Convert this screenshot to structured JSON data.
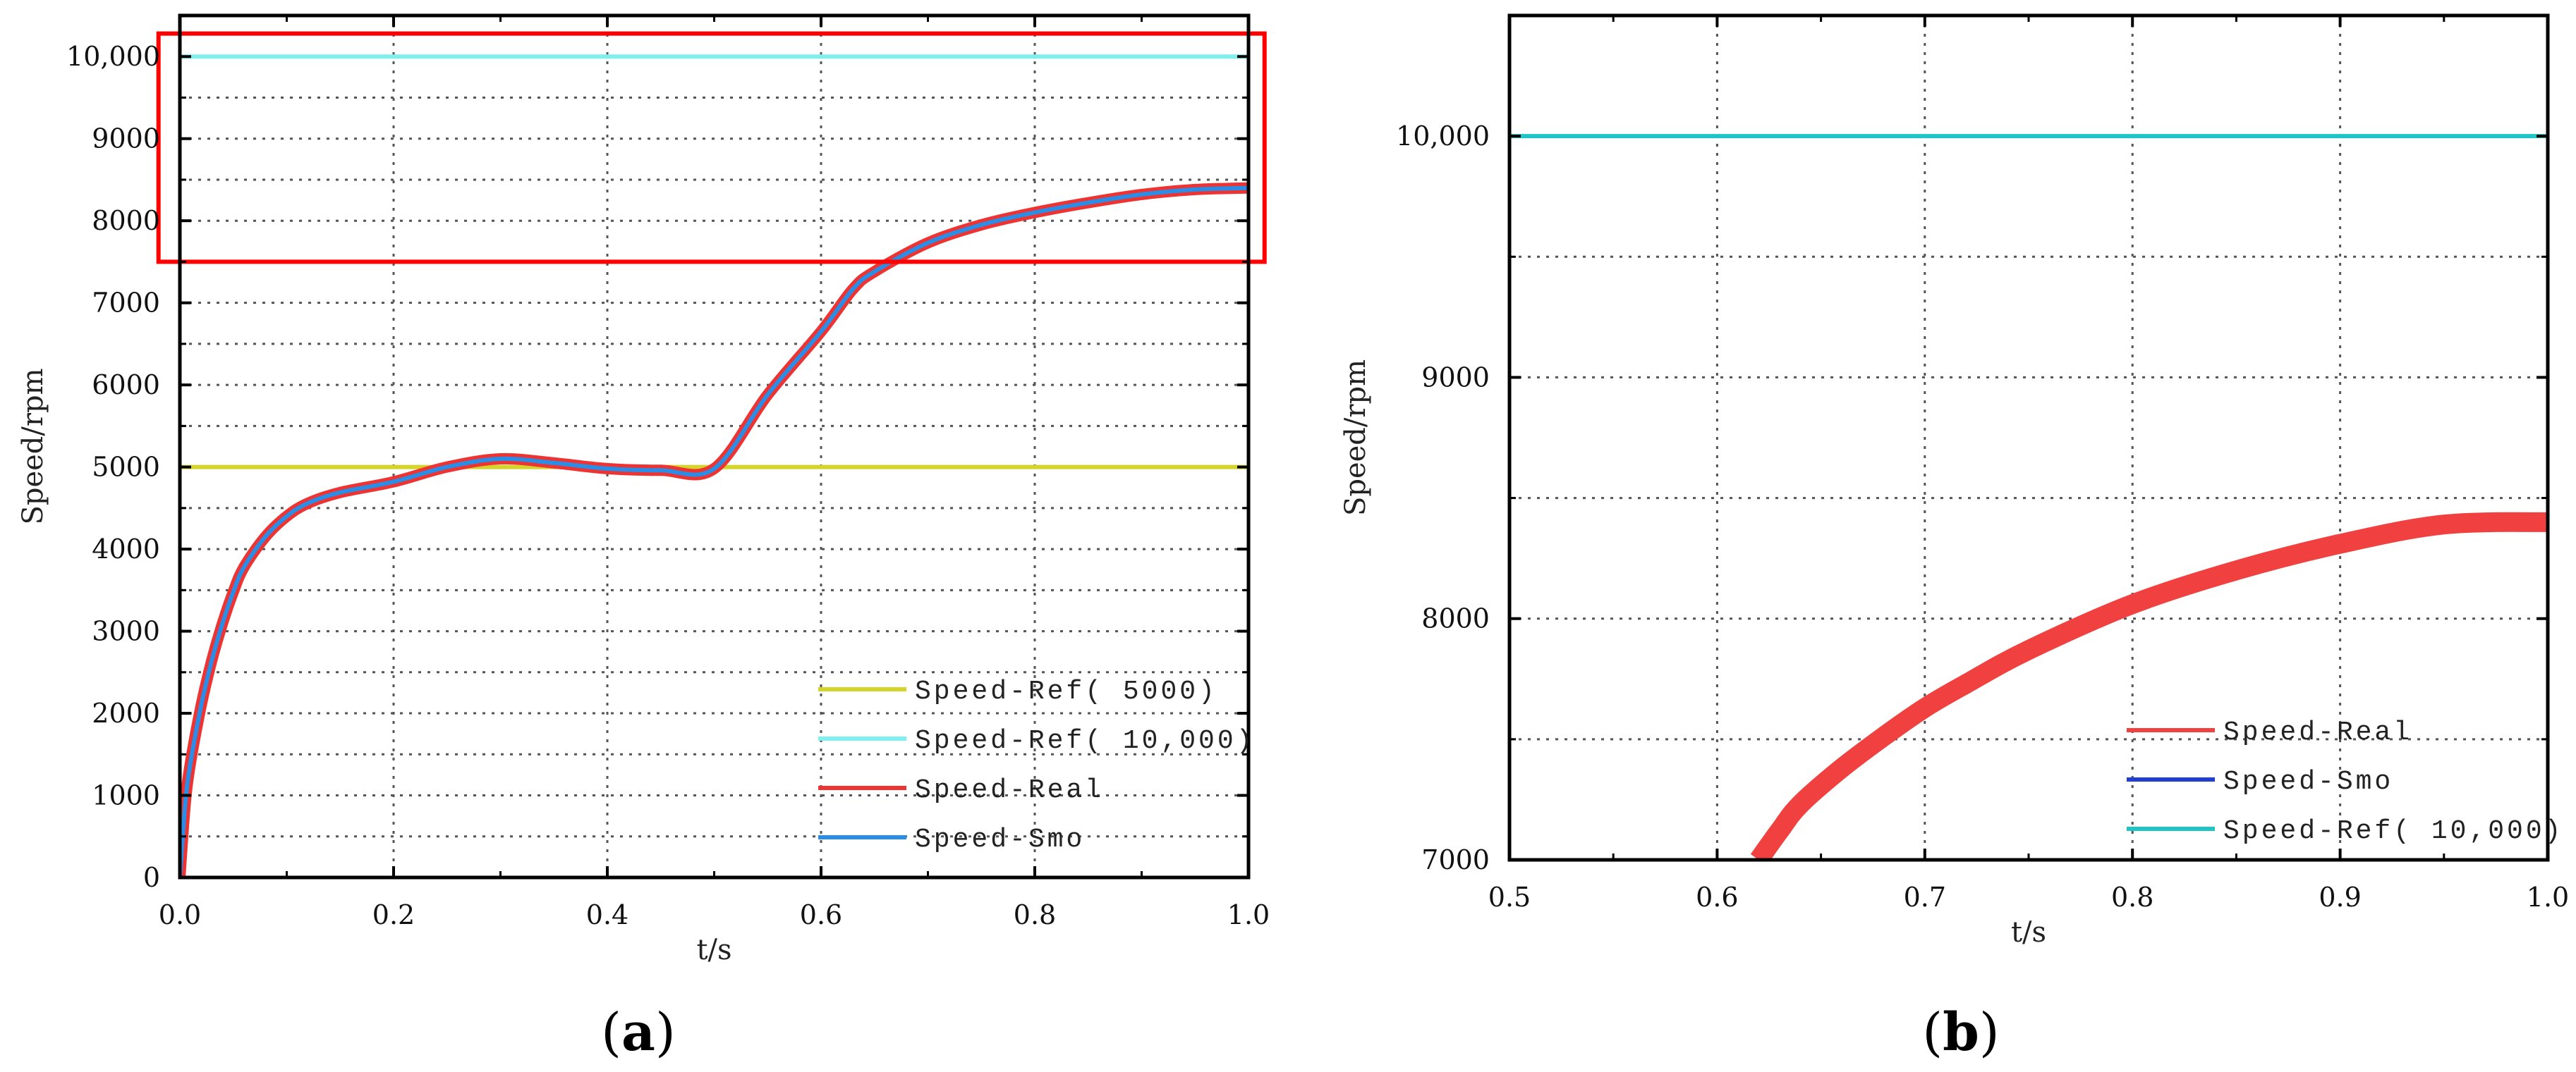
{
  "chart_data": [
    {
      "type": "line",
      "panel_label": "a",
      "xlabel": "t/s",
      "ylabel": "Speed/rpm",
      "xlim": [
        0,
        1.0
      ],
      "ylim": [
        0,
        10500
      ],
      "x_ticks": [
        0.0,
        0.2,
        0.4,
        0.6,
        0.8,
        1.0
      ],
      "x_tick_labels": [
        "0.0",
        "0.2",
        "0.4",
        "0.6",
        "0.8",
        "1.0"
      ],
      "x_minor_step": 0.1,
      "y_ticks": [
        0,
        1000,
        2000,
        3000,
        4000,
        5000,
        6000,
        7000,
        8000,
        9000,
        10000
      ],
      "y_tick_labels": [
        "0",
        "1000",
        "2000",
        "3000",
        "4000",
        "5000",
        "6000",
        "7000",
        "8000",
        "9000",
        "10,000"
      ],
      "y_minor_step": 500,
      "grid": true,
      "legend_position": "bottom-right",
      "highlight_region": {
        "x": [
          -0.02,
          1.015
        ],
        "y": [
          7500,
          10280
        ],
        "color": "#ff0000"
      },
      "series": [
        {
          "name": "Speed-Ref( 5000)",
          "color": "#d4d42a",
          "width": 6,
          "x": [
            0,
            1.0
          ],
          "y": [
            5000,
            5000
          ]
        },
        {
          "name": "Speed-Ref( 10,000)",
          "color": "#7ff0f0",
          "width": 6,
          "x": [
            0,
            1.0
          ],
          "y": [
            10000,
            10000
          ]
        },
        {
          "name": "Speed-Real",
          "color": "#ee3333",
          "width": 16,
          "x": [
            0,
            0.005,
            0.01,
            0.02,
            0.03,
            0.04,
            0.05,
            0.06,
            0.08,
            0.1,
            0.12,
            0.15,
            0.2,
            0.25,
            0.3,
            0.35,
            0.4,
            0.45,
            0.5,
            0.55,
            0.6,
            0.63,
            0.65,
            0.7,
            0.75,
            0.8,
            0.85,
            0.9,
            0.95,
            1.0
          ],
          "y": [
            0,
            900,
            1400,
            2100,
            2650,
            3100,
            3480,
            3780,
            4150,
            4400,
            4560,
            4690,
            4820,
            5000,
            5100,
            5050,
            4980,
            4960,
            4980,
            5880,
            6650,
            7170,
            7380,
            7730,
            7950,
            8100,
            8220,
            8320,
            8380,
            8400
          ]
        },
        {
          "name": "Speed-Smo",
          "color": "#2b8ee6",
          "width": 6,
          "x": [
            0,
            0.005,
            0.01,
            0.02,
            0.03,
            0.04,
            0.05,
            0.06,
            0.08,
            0.1,
            0.12,
            0.15,
            0.2,
            0.25,
            0.3,
            0.35,
            0.4,
            0.45,
            0.5,
            0.55,
            0.6,
            0.63,
            0.65,
            0.7,
            0.75,
            0.8,
            0.85,
            0.9,
            0.95,
            1.0
          ],
          "y": [
            0,
            900,
            1400,
            2100,
            2650,
            3100,
            3480,
            3780,
            4150,
            4400,
            4560,
            4690,
            4820,
            5000,
            5100,
            5050,
            4980,
            4960,
            4980,
            5880,
            6650,
            7170,
            7380,
            7730,
            7950,
            8100,
            8220,
            8320,
            8380,
            8400
          ]
        }
      ]
    },
    {
      "type": "line",
      "panel_label": "b",
      "xlabel": "t/s",
      "ylabel": "Speed/rpm",
      "xlim": [
        0.5,
        1.0
      ],
      "ylim": [
        7000,
        10500
      ],
      "x_ticks": [
        0.5,
        0.6,
        0.7,
        0.8,
        0.9,
        1.0
      ],
      "x_tick_labels": [
        "0.5",
        "0.6",
        "0.7",
        "0.8",
        "0.9",
        "1.0"
      ],
      "x_minor_step": 0.05,
      "y_ticks": [
        7000,
        8000,
        9000,
        10000
      ],
      "y_tick_labels": [
        "7000",
        "8000",
        "9000",
        "10,000"
      ],
      "y_minor_step": 500,
      "grid": true,
      "legend_position": "bottom-right",
      "series": [
        {
          "name": "Speed-Real",
          "color": "#f04040",
          "width": 28,
          "x": [
            0.62,
            0.63,
            0.64,
            0.66,
            0.68,
            0.7,
            0.72,
            0.75,
            0.8,
            0.85,
            0.9,
            0.95,
            1.0
          ],
          "y": [
            7000,
            7120,
            7230,
            7380,
            7510,
            7630,
            7730,
            7870,
            8060,
            8200,
            8310,
            8390,
            8400
          ]
        },
        {
          "name": "Speed-Smo",
          "color": "#1f3fd4",
          "width": 6,
          "x": [],
          "y": []
        },
        {
          "name": "Speed-Ref( 10,000)",
          "color": "#1fc4c4",
          "width": 6,
          "x": [
            0.5,
            1.0
          ],
          "y": [
            10000,
            10000
          ]
        }
      ]
    }
  ]
}
